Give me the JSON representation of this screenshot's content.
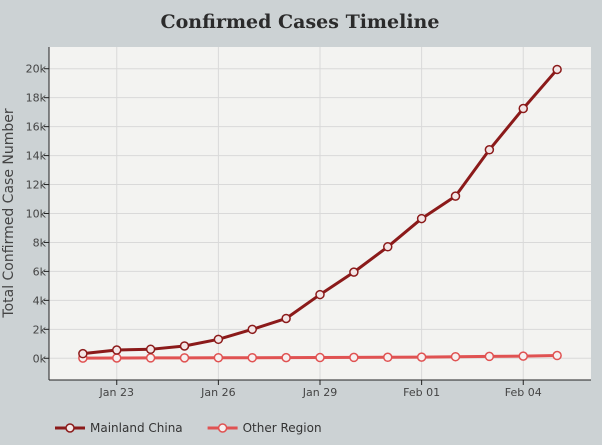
{
  "chart_data": {
    "type": "line",
    "title": "Confirmed Cases Timeline",
    "xlabel": "",
    "ylabel": "Total Confirmed Case Number",
    "x": [
      "2020-01-22",
      "2020-01-23",
      "2020-01-24",
      "2020-01-25",
      "2020-01-26",
      "2020-01-27",
      "2020-01-28",
      "2020-01-29",
      "2020-01-30",
      "2020-01-31",
      "2020-02-01",
      "2020-02-02",
      "2020-02-03",
      "2020-02-04",
      "2020-02-05"
    ],
    "x_tick_labels": [
      "Jan 23",
      "Jan 26",
      "Jan 29",
      "Feb 01",
      "Feb 04"
    ],
    "x_tick_values": [
      "2020-01-23",
      "2020-01-26",
      "2020-01-29",
      "2020-02-01",
      "2020-02-04"
    ],
    "y_tick_labels": [
      "0k",
      "2k",
      "4k",
      "6k",
      "8k",
      "10k",
      "12k",
      "14k",
      "16k",
      "18k",
      "20k"
    ],
    "y_tick_values": [
      0,
      2000,
      4000,
      6000,
      8000,
      10000,
      12000,
      14000,
      16000,
      18000,
      20000
    ],
    "ylim": [
      -1500,
      21500
    ],
    "xlim": [
      "2020-01-21",
      "2020-02-06"
    ],
    "grid": true,
    "legend_position": "bottom-left",
    "series": [
      {
        "name": "Mainland China",
        "color": "#8b1a1a",
        "marker_fill": "#f3e6e6",
        "values": [
          320,
          570,
          620,
          850,
          1310,
          2000,
          2750,
          4400,
          5950,
          7700,
          9650,
          11200,
          14400,
          17250,
          19950
        ]
      },
      {
        "name": "Other Region",
        "color": "#e05252",
        "marker_fill": "#f6f0f0",
        "values": [
          12,
          21,
          27,
          31,
          38,
          40,
          45,
          50,
          60,
          70,
          80,
          110,
          130,
          150,
          190
        ]
      }
    ]
  },
  "colors": {
    "page_background": "#ccd2d4",
    "plot_background": "#f3f3f1",
    "grid": "#d9d9d9"
  }
}
